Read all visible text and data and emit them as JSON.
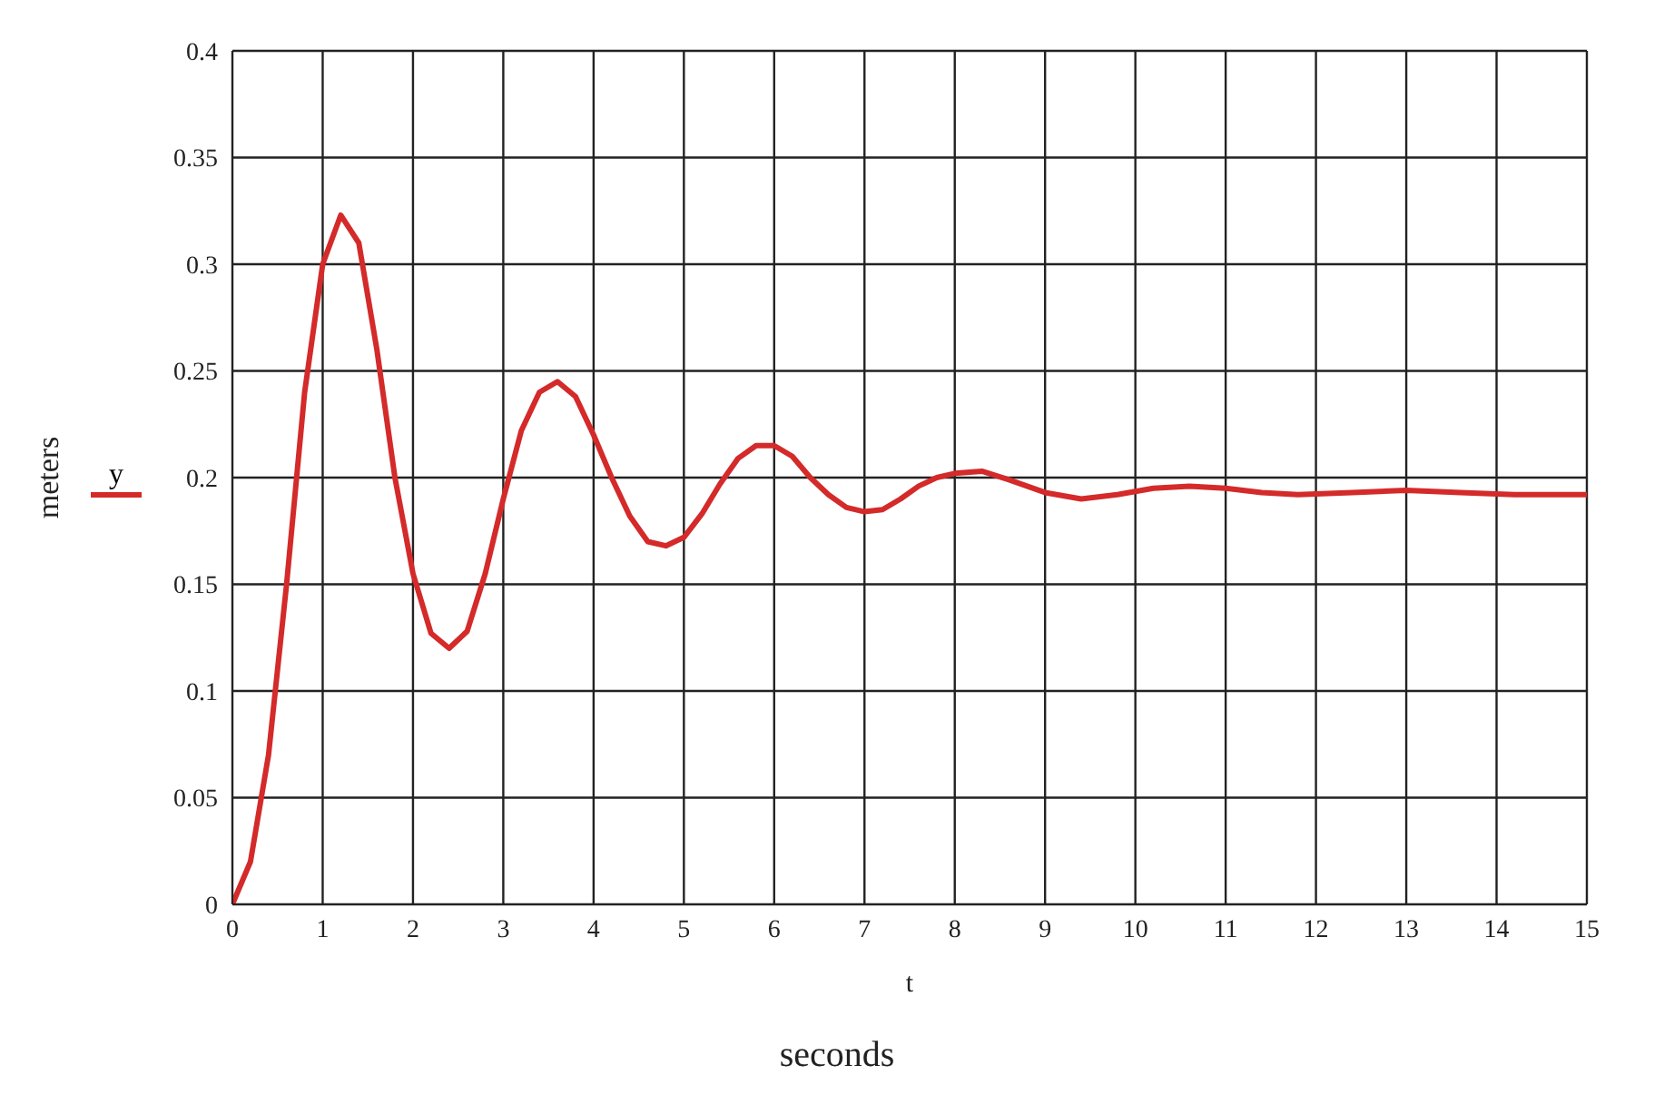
{
  "chart_data": {
    "type": "line",
    "xlabel": "t",
    "ylabel": "meters",
    "annotations": [
      "seconds"
    ],
    "xlim": [
      0,
      15
    ],
    "xticks": [
      0,
      1,
      2,
      3,
      4,
      5,
      6,
      7,
      8,
      9,
      10,
      11,
      12,
      13,
      14,
      15
    ],
    "ylim": [
      0,
      0.4
    ],
    "yticks": [
      0,
      0.05,
      0.1,
      0.15,
      0.2,
      0.25,
      0.3,
      0.35,
      0.4
    ],
    "grid": true,
    "legend": "left",
    "marker": "none",
    "line_style": "solid",
    "x": [
      0,
      0.2,
      0.4,
      0.6,
      0.8,
      1.0,
      1.2,
      1.4,
      1.6,
      1.8,
      2.0,
      2.2,
      2.4,
      2.6,
      2.8,
      3.0,
      3.2,
      3.4,
      3.6,
      3.8,
      4.0,
      4.2,
      4.4,
      4.6,
      4.8,
      5.0,
      5.2,
      5.4,
      5.6,
      5.8,
      6.0,
      6.2,
      6.4,
      6.6,
      6.8,
      7.0,
      7.2,
      7.4,
      7.6,
      7.8,
      8.0,
      8.3,
      8.6,
      9.0,
      9.4,
      9.8,
      10.2,
      10.6,
      11.0,
      11.4,
      11.8,
      12.4,
      13.0,
      13.6,
      14.2,
      15
    ],
    "series": [
      {
        "name": "y",
        "color": "#d42a2a",
        "values": [
          0,
          0.02,
          0.07,
          0.15,
          0.24,
          0.3,
          0.323,
          0.31,
          0.26,
          0.2,
          0.155,
          0.127,
          0.12,
          0.128,
          0.155,
          0.19,
          0.222,
          0.24,
          0.245,
          0.238,
          0.22,
          0.2,
          0.182,
          0.17,
          0.168,
          0.172,
          0.183,
          0.197,
          0.209,
          0.215,
          0.215,
          0.21,
          0.2,
          0.192,
          0.186,
          0.184,
          0.185,
          0.19,
          0.196,
          0.2,
          0.202,
          0.203,
          0.199,
          0.193,
          0.19,
          0.192,
          0.195,
          0.196,
          0.195,
          0.193,
          0.192,
          0.193,
          0.194,
          0.193,
          0.192,
          0.192
        ]
      }
    ]
  }
}
